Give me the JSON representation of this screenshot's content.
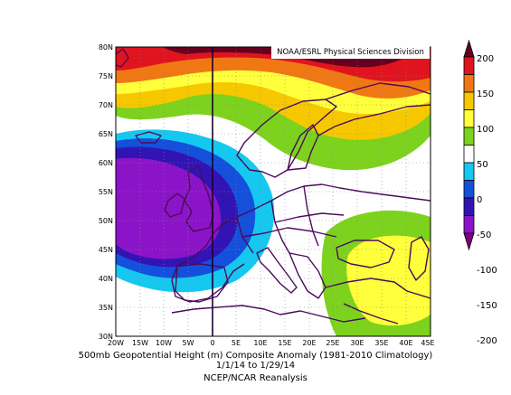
{
  "map": {
    "credit": "NOAA/ESRL Physical Sciences Division",
    "lat_labels": [
      "80N",
      "75N",
      "70N",
      "65N",
      "60N",
      "55N",
      "50N",
      "45N",
      "40N",
      "35N",
      "30N"
    ],
    "lon_labels": [
      "20W",
      "15W",
      "10W",
      "5W",
      "0",
      "5E",
      "10E",
      "15E",
      "20E",
      "25E",
      "30E",
      "35E",
      "40E",
      "45E"
    ]
  },
  "colorbar": {
    "labels": [
      "200",
      "150",
      "100",
      "50",
      "0",
      "-50",
      "-100",
      "-150",
      "-200"
    ],
    "colors": [
      "#66001e",
      "#e0141e",
      "#f07814",
      "#f5c800",
      "#ffff3c",
      "#7dd21e",
      "#ffffff",
      "#14c8f0",
      "#1450dc",
      "#3214b4",
      "#8c14c8",
      "#7d007d"
    ]
  },
  "caption": {
    "line1": "500mb Geopotential Height (m) Composite Anomaly (1981-2010 Climatology)",
    "line2": "1/1/14  to 1/29/14",
    "line3": "NCEP/NCAR Reanalysis"
  }
}
